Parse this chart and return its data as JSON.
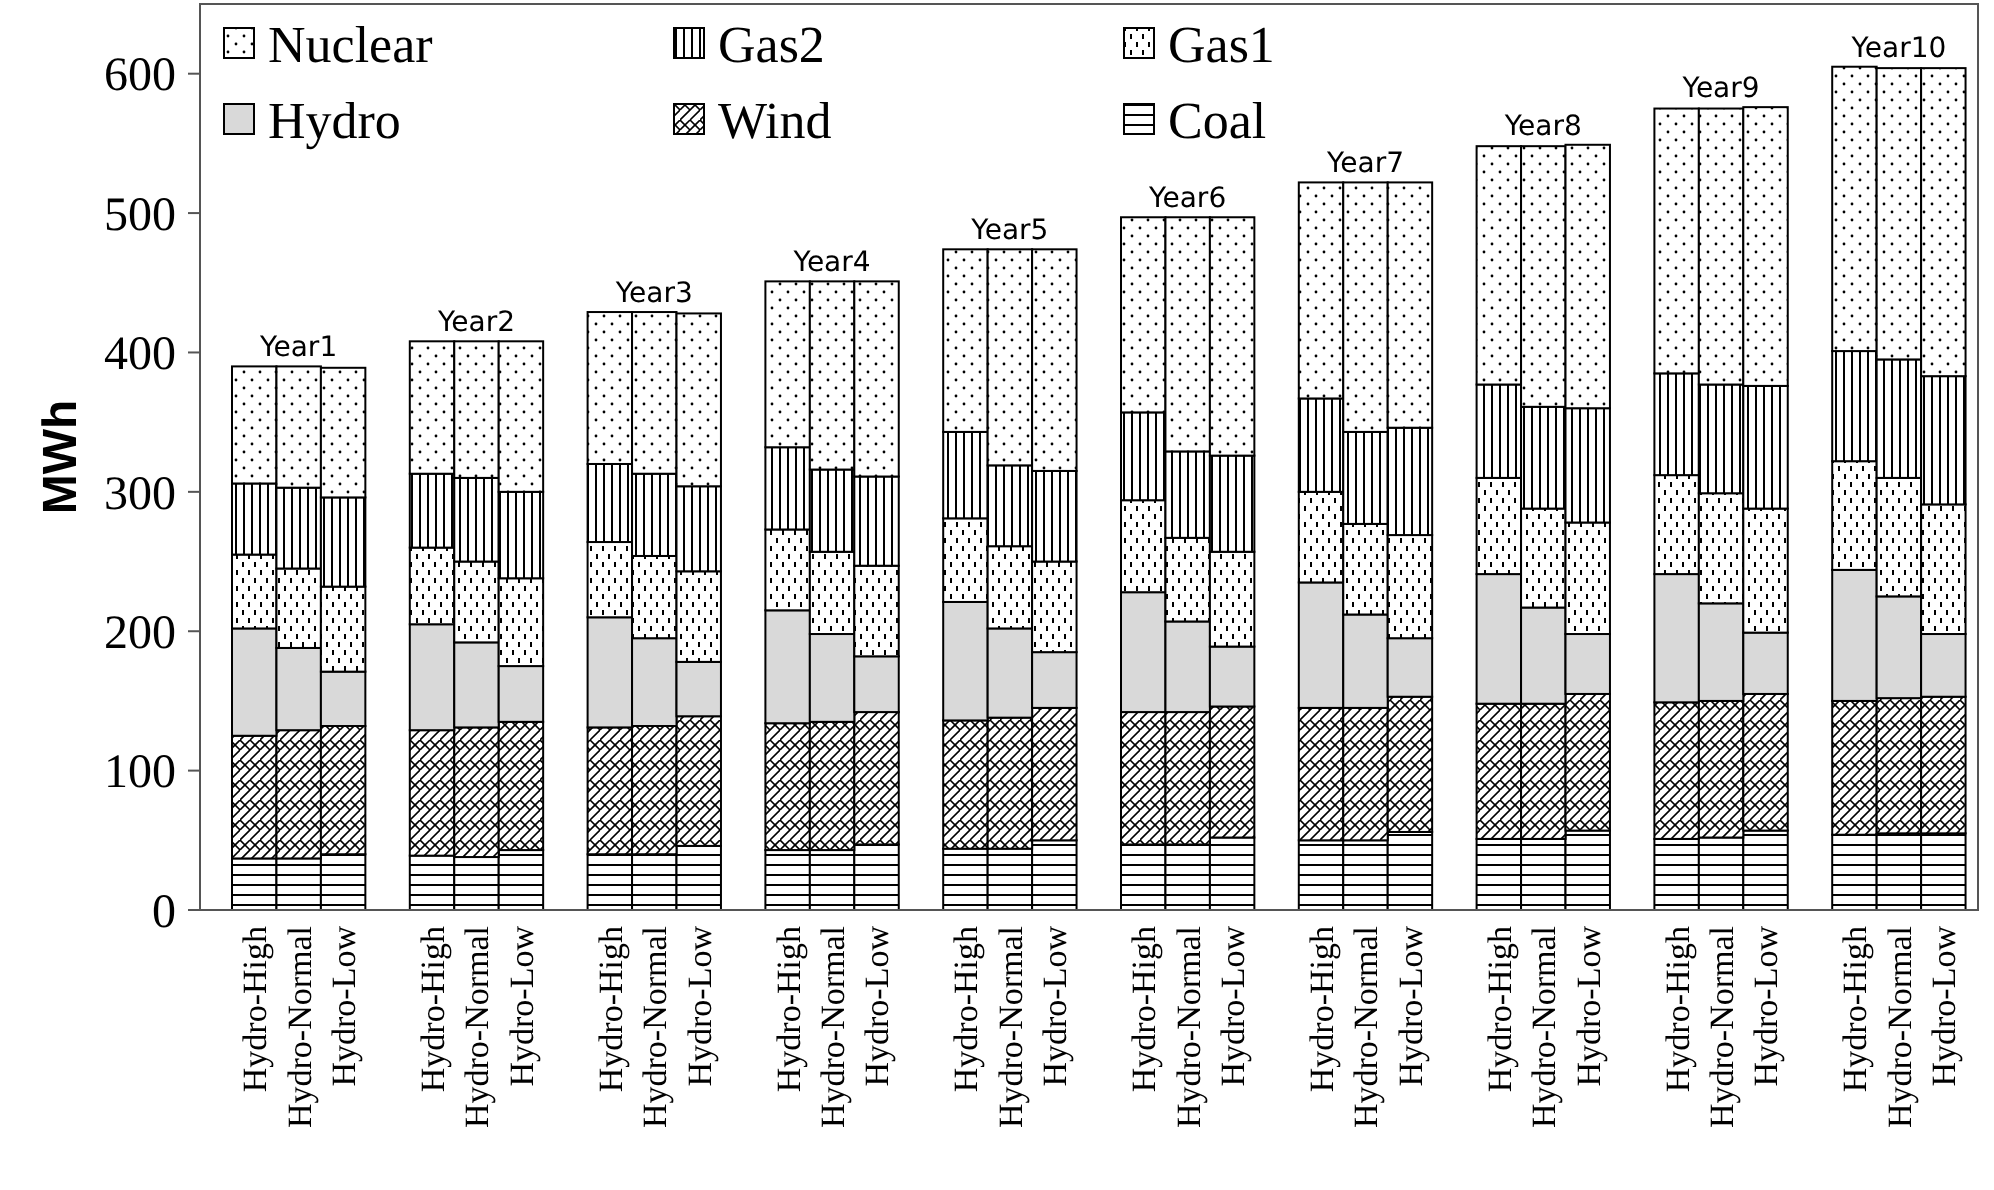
{
  "chart_data": {
    "type": "bar",
    "stacked": true,
    "ylabel": "MWh",
    "ylim": [
      0,
      650
    ],
    "yticks": [
      0,
      100,
      200,
      300,
      400,
      500,
      600
    ],
    "grid": false,
    "legend": "top left",
    "categories": [
      "Hydro-High",
      "Hydro-Normal",
      "Hydro-Low",
      "Hydro-High",
      "Hydro-Normal",
      "Hydro-Low",
      "Hydro-High",
      "Hydro-Normal",
      "Hydro-Low",
      "Hydro-High",
      "Hydro-Normal",
      "Hydro-Low",
      "Hydro-High",
      "Hydro-Normal",
      "Hydro-Low",
      "Hydro-High",
      "Hydro-Normal",
      "Hydro-Low",
      "Hydro-High",
      "Hydro-Normal",
      "Hydro-Low",
      "Hydro-High",
      "Hydro-Normal",
      "Hydro-Low",
      "Hydro-High",
      "Hydro-Normal",
      "Hydro-Low",
      "Hydro-High",
      "Hydro-Normal",
      "Hydro-Low"
    ],
    "annotations": [
      "Year1",
      "Year2",
      "Year3",
      "Year4",
      "Year5",
      "Year6",
      "Year7",
      "Year8",
      "Year9",
      "Year10"
    ],
    "series": [
      {
        "name": "Coal",
        "color": "#ffffff",
        "values": [
          37,
          37,
          40,
          39,
          38,
          43,
          40,
          40,
          46,
          43,
          43,
          47,
          44,
          44,
          50,
          47,
          47,
          52,
          50,
          50,
          56,
          51,
          51,
          57,
          51,
          52,
          57,
          54,
          55,
          55
        ]
      },
      {
        "name": "Wind",
        "color": "#ffffff",
        "values": [
          88,
          92,
          92,
          90,
          93,
          92,
          91,
          92,
          93,
          91,
          92,
          95,
          92,
          94,
          95,
          95,
          95,
          94,
          95,
          95,
          97,
          97,
          97,
          98,
          98,
          98,
          98,
          96,
          97,
          98
        ]
      },
      {
        "name": "Hydro",
        "color": "#d9d9d9",
        "values": [
          77,
          59,
          39,
          76,
          61,
          40,
          79,
          63,
          39,
          81,
          63,
          40,
          85,
          64,
          40,
          86,
          65,
          43,
          90,
          67,
          42,
          93,
          69,
          43,
          92,
          70,
          44,
          94,
          73,
          45
        ]
      },
      {
        "name": "Gas1",
        "color": "#ffffff",
        "values": [
          53,
          57,
          61,
          55,
          58,
          63,
          54,
          59,
          65,
          58,
          59,
          65,
          60,
          59,
          65,
          66,
          60,
          68,
          65,
          65,
          74,
          69,
          71,
          80,
          71,
          79,
          89,
          78,
          85,
          93
        ]
      },
      {
        "name": "Gas2",
        "color": "#ffffff",
        "values": [
          51,
          58,
          64,
          53,
          60,
          62,
          56,
          59,
          61,
          59,
          59,
          64,
          62,
          58,
          65,
          63,
          62,
          69,
          67,
          66,
          77,
          67,
          73,
          82,
          73,
          78,
          88,
          79,
          85,
          92
        ]
      },
      {
        "name": "Nuclear",
        "color": "#ffffff",
        "values": [
          84,
          87,
          93,
          95,
          98,
          108,
          109,
          116,
          124,
          119,
          135,
          140,
          131,
          155,
          159,
          140,
          168,
          171,
          155,
          179,
          176,
          171,
          187,
          189,
          190,
          198,
          200,
          204,
          209,
          221
        ]
      }
    ]
  }
}
